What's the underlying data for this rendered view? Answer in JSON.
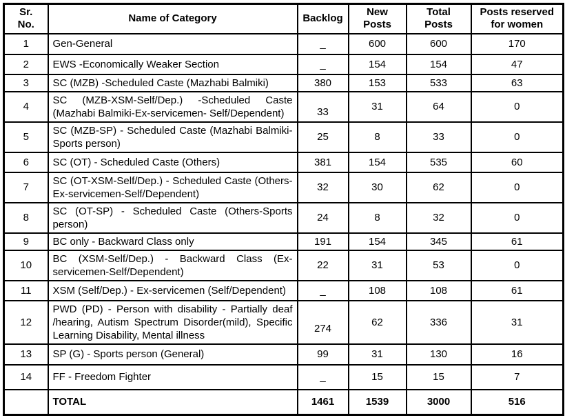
{
  "page": {
    "background_color": "#ffffff",
    "border_color": "#000000",
    "text_color": "#000000"
  },
  "table": {
    "headers": {
      "sr_no": "Sr.\nNo.",
      "name": "Name of Category",
      "backlog": "Backlog",
      "new_posts": "New\nPosts",
      "total_posts": "Total\nPosts",
      "women": "Posts reserved\nfor women"
    },
    "rows": [
      {
        "sr": "1",
        "name": "Gen-General",
        "backlog": "_",
        "new_posts": "600",
        "total_posts": "600",
        "women": "170"
      },
      {
        "sr": "2",
        "name": "EWS -Economically Weaker Section",
        "backlog": "_",
        "new_posts": "154",
        "total_posts": "154",
        "women": "47"
      },
      {
        "sr": "3",
        "name": "SC (MZB) -Scheduled Caste (Mazhabi Balmiki)",
        "backlog": "380",
        "new_posts": "153",
        "total_posts": "533",
        "women": "63"
      },
      {
        "sr": "4",
        "name": "SC (MZB-XSM-Self/Dep.) -Scheduled Caste (Mazhabi Balmiki-Ex-servicemen- Self/Dependent)",
        "backlog": "33",
        "new_posts": "31",
        "total_posts": "64",
        "women": "0"
      },
      {
        "sr": "5",
        "name": "SC (MZB-SP) - Scheduled Caste (Mazhabi Balmiki-Sports person)",
        "backlog": "25",
        "new_posts": "8",
        "total_posts": "33",
        "women": "0"
      },
      {
        "sr": "6",
        "name": "SC (OT) - Scheduled Caste (Others)",
        "backlog": "381",
        "new_posts": "154",
        "total_posts": "535",
        "women": "60"
      },
      {
        "sr": "7",
        "name": "SC (OT-XSM-Self/Dep.) - Scheduled Caste (Others-Ex-servicemen-Self/Dependent)",
        "backlog": "32",
        "new_posts": "30",
        "total_posts": "62",
        "women": "0"
      },
      {
        "sr": "8",
        "name": "SC (OT-SP) - Scheduled Caste (Others-Sports person)",
        "backlog": "24",
        "new_posts": "8",
        "total_posts": "32",
        "women": "0"
      },
      {
        "sr": "9",
        "name": "BC only - Backward Class only",
        "backlog": "191",
        "new_posts": "154",
        "total_posts": "345",
        "women": "61"
      },
      {
        "sr": "10",
        "name": "BC (XSM-Self/Dep.) - Backward Class (Ex-servicemen-Self/Dependent)",
        "backlog": "22",
        "new_posts": "31",
        "total_posts": "53",
        "women": "0"
      },
      {
        "sr": "11",
        "name": "XSM (Self/Dep.) - Ex-servicemen (Self/Dependent)",
        "backlog": "_",
        "new_posts": "108",
        "total_posts": "108",
        "women": "61"
      },
      {
        "sr": "12",
        "name": "PWD (PD) - Person with disability - Partially deaf /hearing, Autism Spectrum Disorder(mild), Specific Learning Disability, Mental illness",
        "backlog": "274",
        "new_posts": "62",
        "total_posts": "336",
        "women": "31"
      },
      {
        "sr": "13",
        "name": "SP (G) - Sports person (General)",
        "backlog": "99",
        "new_posts": "31",
        "total_posts": "130",
        "women": "16"
      },
      {
        "sr": "14",
        "name": "FF - Freedom Fighter",
        "backlog": "_",
        "new_posts": "15",
        "total_posts": "15",
        "women": "7"
      }
    ],
    "total": {
      "sr": "",
      "label": "TOTAL",
      "backlog": "1461",
      "new_posts": "1539",
      "total_posts": "3000",
      "women": "516"
    }
  }
}
